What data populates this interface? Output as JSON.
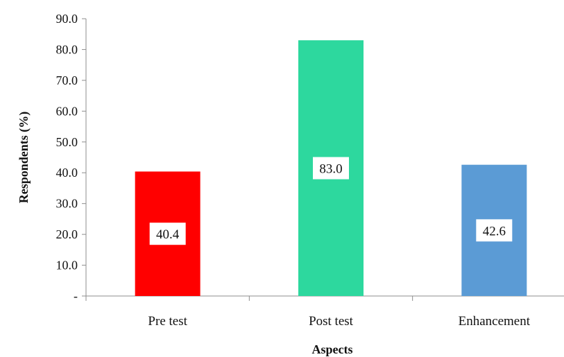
{
  "chart_data": {
    "type": "bar",
    "title": "",
    "xlabel": "Aspects",
    "ylabel": "Respondents (%)",
    "ylim": [
      0,
      90
    ],
    "yticks": [
      0,
      10,
      20,
      30,
      40,
      50,
      60,
      70,
      80,
      90
    ],
    "ytick_labels": [
      "-",
      "10.0",
      "20.0",
      "30.0",
      "40.0",
      "50.0",
      "60.0",
      "70.0",
      "80.0",
      "90.0"
    ],
    "categories": [
      "Pre test",
      "Post test",
      "Enhancement"
    ],
    "values": [
      40.4,
      83.0,
      42.6
    ],
    "data_labels": [
      "40.4",
      "83.0",
      "42.6"
    ],
    "colors": [
      "#ff0000",
      "#2dd89e",
      "#5b9bd5"
    ],
    "grid": false,
    "legend": "none"
  }
}
